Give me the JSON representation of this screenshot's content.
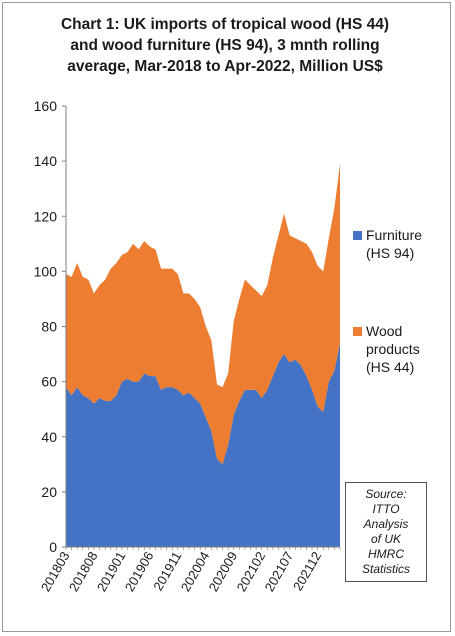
{
  "chart_data": {
    "type": "area",
    "stacked": true,
    "title_lines": [
      "Chart 1: UK imports of tropical wood (HS 44)",
      "and wood furniture (HS 94), 3 mnth rolling",
      "average, Mar-2018 to Apr-2022, Million US$"
    ],
    "x": [
      "201803",
      "201804",
      "201805",
      "201806",
      "201807",
      "201808",
      "201809",
      "201810",
      "201811",
      "201812",
      "201901",
      "201902",
      "201903",
      "201904",
      "201905",
      "201906",
      "201907",
      "201908",
      "201909",
      "201910",
      "201911",
      "201912",
      "202001",
      "202002",
      "202003",
      "202004",
      "202005",
      "202006",
      "202007",
      "202008",
      "202009",
      "202010",
      "202011",
      "202012",
      "202101",
      "202102",
      "202103",
      "202104",
      "202105",
      "202106",
      "202107",
      "202108",
      "202109",
      "202110",
      "202111",
      "202112",
      "202201",
      "202202",
      "202203",
      "202204"
    ],
    "xtick_labels": [
      "201803",
      "201808",
      "201901",
      "201906",
      "201911",
      "202004",
      "202009",
      "202102",
      "202107",
      "202112"
    ],
    "ylim": [
      0,
      160
    ],
    "yticks": [
      0,
      20,
      40,
      60,
      80,
      100,
      120,
      140,
      160
    ],
    "grid": false,
    "legend_position": "right",
    "series": [
      {
        "name_lines": [
          "Furniture",
          "(HS 94)"
        ],
        "color": "#4472c4",
        "values": [
          58,
          55,
          58,
          55,
          54,
          52,
          54,
          53,
          53,
          55,
          60,
          61,
          60,
          60,
          63,
          62,
          62,
          57,
          58,
          58,
          57,
          55,
          56,
          54,
          52,
          47,
          42,
          32,
          30,
          37,
          48,
          53,
          57,
          57,
          57,
          54,
          57,
          62,
          67,
          70,
          67,
          68,
          66,
          62,
          57,
          51,
          49,
          60,
          64,
          74
        ]
      },
      {
        "name_lines": [
          "Wood",
          "products",
          "(HS 44)"
        ],
        "color": "#ed7d31",
        "values": [
          41,
          43,
          45,
          43,
          43,
          40,
          41,
          44,
          48,
          48,
          46,
          46,
          50,
          48,
          48,
          47,
          46,
          44,
          43,
          43,
          42,
          37,
          36,
          36,
          35,
          33,
          33,
          27,
          28,
          26,
          34,
          37,
          40,
          38,
          36,
          37,
          38,
          43,
          46,
          51,
          46,
          44,
          45,
          48,
          50,
          51,
          51,
          52,
          59,
          65
        ]
      }
    ]
  },
  "source_lines": [
    "Source:",
    "ITTO",
    "Analysis",
    "of UK",
    "HMRC",
    "Statistics"
  ]
}
